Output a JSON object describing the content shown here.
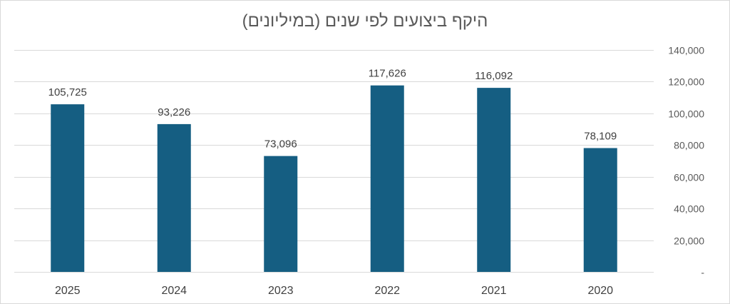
{
  "colors": {
    "bar": "#155e82",
    "grid": "#d9d9d9",
    "text": "#595959"
  },
  "chart_data": {
    "type": "bar",
    "title": "היקף ביצועים לפי שנים (במיליונים)",
    "categories": [
      "2025",
      "2024",
      "2023",
      "2022",
      "2021",
      "2020"
    ],
    "values": [
      105725,
      93226,
      73096,
      117626,
      116092,
      78109
    ],
    "data_labels": [
      "105,725",
      "93,226",
      "73,096",
      "117,626",
      "116,092",
      "78,109"
    ],
    "y_ticks": [
      0,
      20000,
      40000,
      60000,
      80000,
      100000,
      120000,
      140000
    ],
    "y_tick_labels": [
      "-",
      "20,000",
      "40,000",
      "60,000",
      "80,000",
      "100,000",
      "120,000",
      "140,000"
    ],
    "ylim": [
      0,
      140000
    ],
    "y_axis_side": "right",
    "grid": true,
    "legend": "none"
  }
}
